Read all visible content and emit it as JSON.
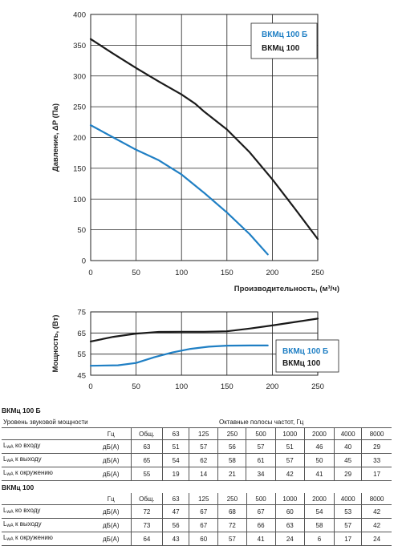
{
  "chart_data": [
    {
      "type": "line",
      "xlabel": "Производительность, (м³/ч)",
      "ylabel": "Давление, ΔP (Па)",
      "xlim": [
        0,
        250
      ],
      "ylim": [
        0,
        400
      ],
      "xticks": [
        "0",
        "50",
        "100",
        "150",
        "200",
        "250"
      ],
      "yticks": [
        "0",
        "50",
        "100",
        "150",
        "200",
        "250",
        "300",
        "350",
        "400"
      ],
      "grid": true,
      "legend": "top-right",
      "series": [
        {
          "name": "ВКМц 100 Б",
          "color": "#1f7fc4",
          "x": [
            0,
            25,
            50,
            75,
            100,
            125,
            150,
            175,
            195
          ],
          "y": [
            220,
            200,
            180,
            163,
            140,
            110,
            78,
            43,
            10
          ]
        },
        {
          "name": "ВКМц 100",
          "color": "#1a1a1a",
          "x": [
            0,
            25,
            50,
            75,
            100,
            115,
            125,
            150,
            175,
            200,
            225,
            250
          ],
          "y": [
            360,
            336,
            313,
            291,
            270,
            255,
            242,
            213,
            176,
            132,
            84,
            35
          ]
        }
      ]
    },
    {
      "type": "line",
      "ylabel": "Мощность, (Вт)",
      "xlim": [
        0,
        250
      ],
      "ylim": [
        45,
        75
      ],
      "xticks": [
        "0",
        "50",
        "100",
        "150",
        "200",
        "250"
      ],
      "yticks": [
        "45",
        "55",
        "65",
        "75"
      ],
      "grid": true,
      "legend": "right",
      "series": [
        {
          "name": "ВКМц 100 Б",
          "color": "#1f7fc4",
          "x": [
            0,
            30,
            50,
            70,
            90,
            110,
            130,
            150,
            175,
            195
          ],
          "y": [
            49.5,
            49.7,
            50.8,
            53.5,
            55.8,
            57.5,
            58.5,
            59,
            59.1,
            59.1
          ]
        },
        {
          "name": "ВКМц 100",
          "color": "#1a1a1a",
          "x": [
            0,
            25,
            50,
            75,
            100,
            125,
            150,
            175,
            200,
            225,
            250
          ],
          "y": [
            61,
            63.2,
            64.7,
            65.5,
            65.6,
            65.6,
            65.8,
            67.1,
            68.6,
            70.2,
            71.8
          ]
        }
      ]
    }
  ],
  "tables": [
    {
      "title": "ВКМц 100 Б",
      "header_label": "Уровень звуковой мощности",
      "bands_title": "Октавные полосы частот, Гц",
      "unit_header": "Гц",
      "columns": [
        "Общ.",
        "63",
        "125",
        "250",
        "500",
        "1000",
        "2000",
        "4000",
        "8000"
      ],
      "rows": [
        {
          "label_main": "L",
          "label_sub": "wA",
          "label_rest": " ко входу",
          "unit": "дБ(А)",
          "values": [
            "63",
            "51",
            "57",
            "56",
            "57",
            "51",
            "46",
            "40",
            "29"
          ]
        },
        {
          "label_main": "L",
          "label_sub": "wA",
          "label_rest": " к выходу",
          "unit": "дБ(А)",
          "values": [
            "65",
            "54",
            "62",
            "58",
            "61",
            "57",
            "50",
            "45",
            "33"
          ]
        },
        {
          "label_main": "L",
          "label_sub": "wA",
          "label_rest": " к окружению",
          "unit": "дБ(А)",
          "values": [
            "55",
            "19",
            "14",
            "21",
            "34",
            "42",
            "41",
            "29",
            "17"
          ]
        }
      ]
    },
    {
      "title": "ВКМц 100",
      "unit_header": "Гц",
      "columns": [
        "Общ.",
        "63",
        "125",
        "250",
        "500",
        "1000",
        "2000",
        "4000",
        "8000"
      ],
      "rows": [
        {
          "label_main": "L",
          "label_sub": "wA",
          "label_rest": " ко входу",
          "unit": "дБ(А)",
          "values": [
            "72",
            "47",
            "67",
            "68",
            "67",
            "60",
            "54",
            "53",
            "42"
          ]
        },
        {
          "label_main": "L",
          "label_sub": "wA",
          "label_rest": " к выходу",
          "unit": "дБ(А)",
          "values": [
            "73",
            "56",
            "67",
            "72",
            "66",
            "63",
            "58",
            "57",
            "42"
          ]
        },
        {
          "label_main": "L",
          "label_sub": "wA",
          "label_rest": " к окружению",
          "unit": "дБ(А)",
          "values": [
            "64",
            "43",
            "60",
            "57",
            "41",
            "24",
            "6",
            "17",
            "24"
          ]
        }
      ]
    }
  ]
}
